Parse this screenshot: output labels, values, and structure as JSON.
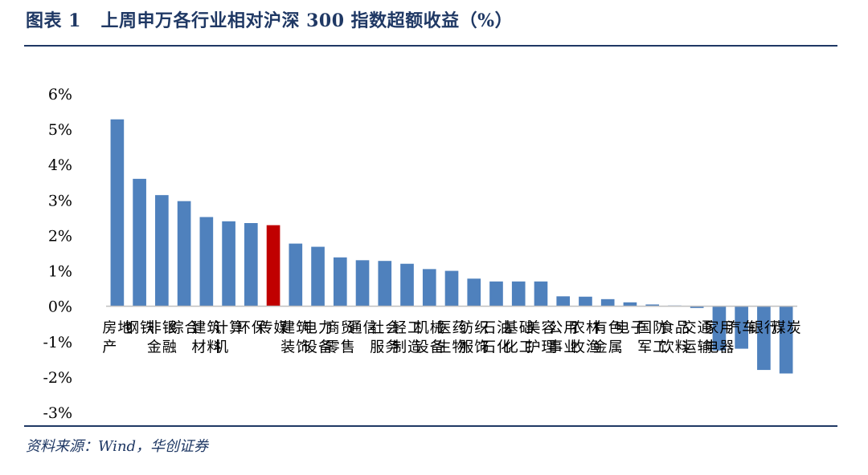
{
  "header": {
    "title": "图表 1   上周申万各行业相对沪深 300 指数超额收益（%）"
  },
  "footer": {
    "source": "资料来源：Wind，华创证券"
  },
  "chart_data": {
    "type": "bar",
    "title": "上周申万各行业相对沪深 300 指数超额收益（%）",
    "xlabel": "",
    "ylabel": "",
    "ylim": [
      -3,
      6
    ],
    "yticks": [
      -3,
      -2,
      -1,
      0,
      1,
      2,
      3,
      4,
      5,
      6
    ],
    "ytick_labels": [
      "-3%",
      "-2%",
      "-1%",
      "0%",
      "1%",
      "2%",
      "3%",
      "4%",
      "5%",
      "6%"
    ],
    "grid": false,
    "legend": "none",
    "categories": [
      "房地产",
      "钢铁",
      "非银金融",
      "综合",
      "建筑材料",
      "计算机",
      "环保",
      "传媒",
      "建筑装饰",
      "电力设备",
      "商贸零售",
      "通信",
      "社会服务",
      "轻工制造",
      "机械设备",
      "医药生物",
      "纺织服饰",
      "石油石化",
      "基础化工",
      "美容护理",
      "公用事业",
      "农林牧渔",
      "有色金属",
      "电子",
      "国防军工",
      "食品饮料",
      "交通运输",
      "家用电器",
      "汽车",
      "银行",
      "煤炭"
    ],
    "values": [
      5.28,
      3.6,
      3.14,
      2.97,
      2.52,
      2.4,
      2.35,
      2.29,
      1.77,
      1.68,
      1.38,
      1.3,
      1.28,
      1.2,
      1.05,
      1.0,
      0.78,
      0.7,
      0.7,
      0.7,
      0.28,
      0.27,
      0.2,
      0.11,
      0.05,
      0.02,
      -0.05,
      -1.25,
      -1.2,
      -1.8,
      -1.9
    ],
    "colors": {
      "bar": "#4f81bd",
      "highlight": "#c00000",
      "highlight_category": "传媒",
      "axis": "#bfbfbf"
    }
  }
}
